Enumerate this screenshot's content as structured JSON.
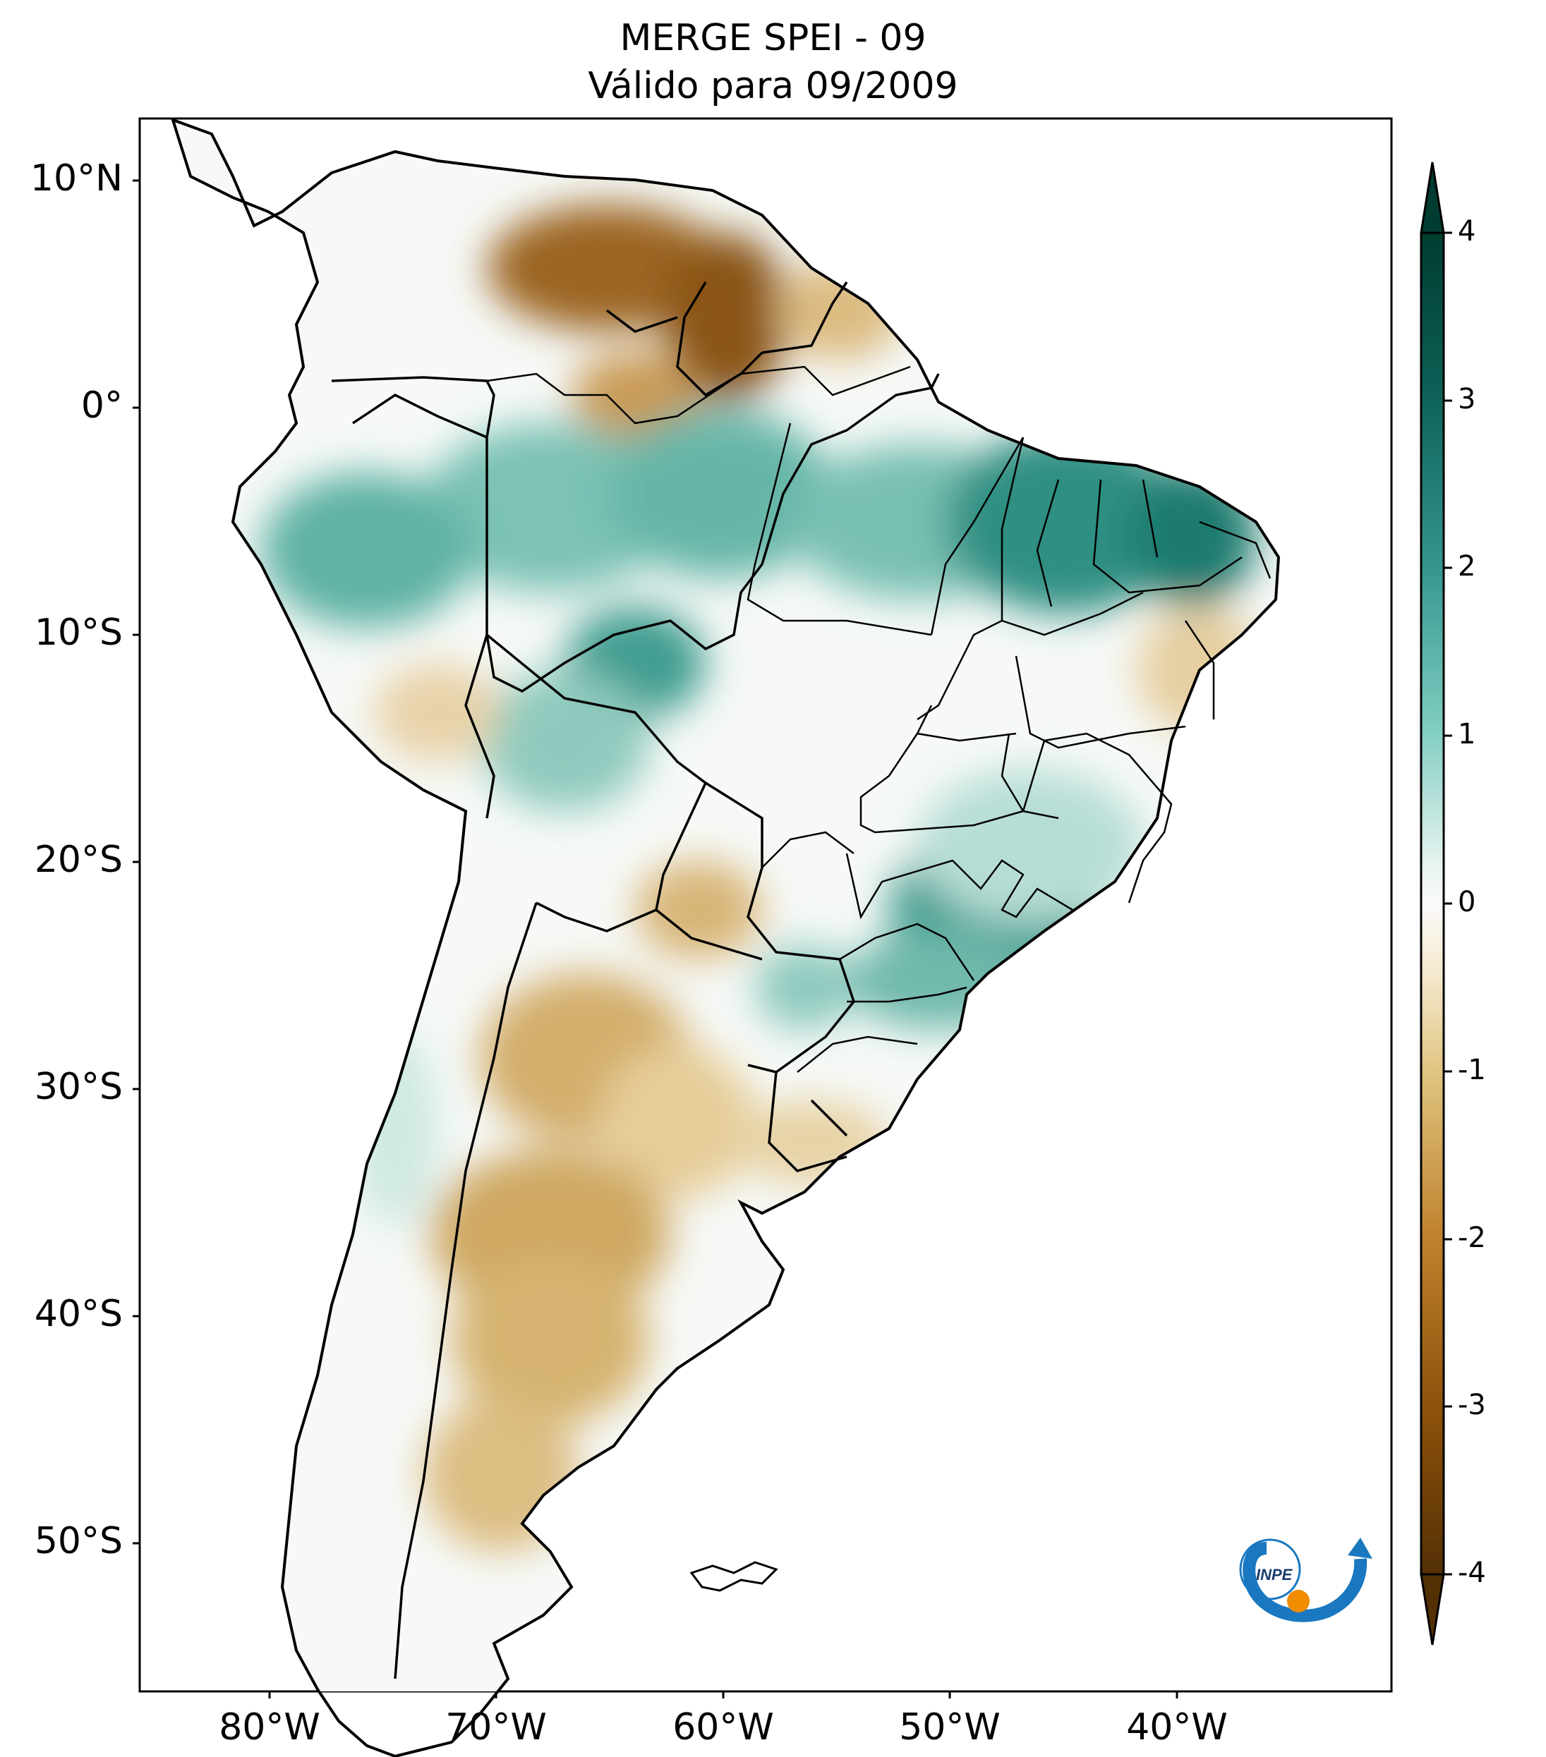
{
  "title": {
    "line1": "MERGE   SPEI - 09",
    "line2": "Válido para 09/2009"
  },
  "map": {
    "region": "South America",
    "lat_ticks": [
      "10°N",
      "0°",
      "10°S",
      "20°S",
      "30°S",
      "40°S",
      "50°S"
    ],
    "lon_ticks": [
      "80°W",
      "70°W",
      "60°W",
      "50°W",
      "40°W"
    ]
  },
  "colorbar": {
    "ticks": [
      "4",
      "3",
      "2",
      "1",
      "0",
      "-1",
      "-2",
      "-3",
      "-4"
    ],
    "colormap": "BrBG",
    "min": -4,
    "max": 4,
    "extend": "both"
  },
  "logo": {
    "text": "INPE"
  },
  "colors": {
    "strong_wet": "#0f5f55",
    "wet": "#55b3a5",
    "neutral": "#f7f7f5",
    "dry": "#d8b371",
    "strong_dry": "#8a5418"
  }
}
